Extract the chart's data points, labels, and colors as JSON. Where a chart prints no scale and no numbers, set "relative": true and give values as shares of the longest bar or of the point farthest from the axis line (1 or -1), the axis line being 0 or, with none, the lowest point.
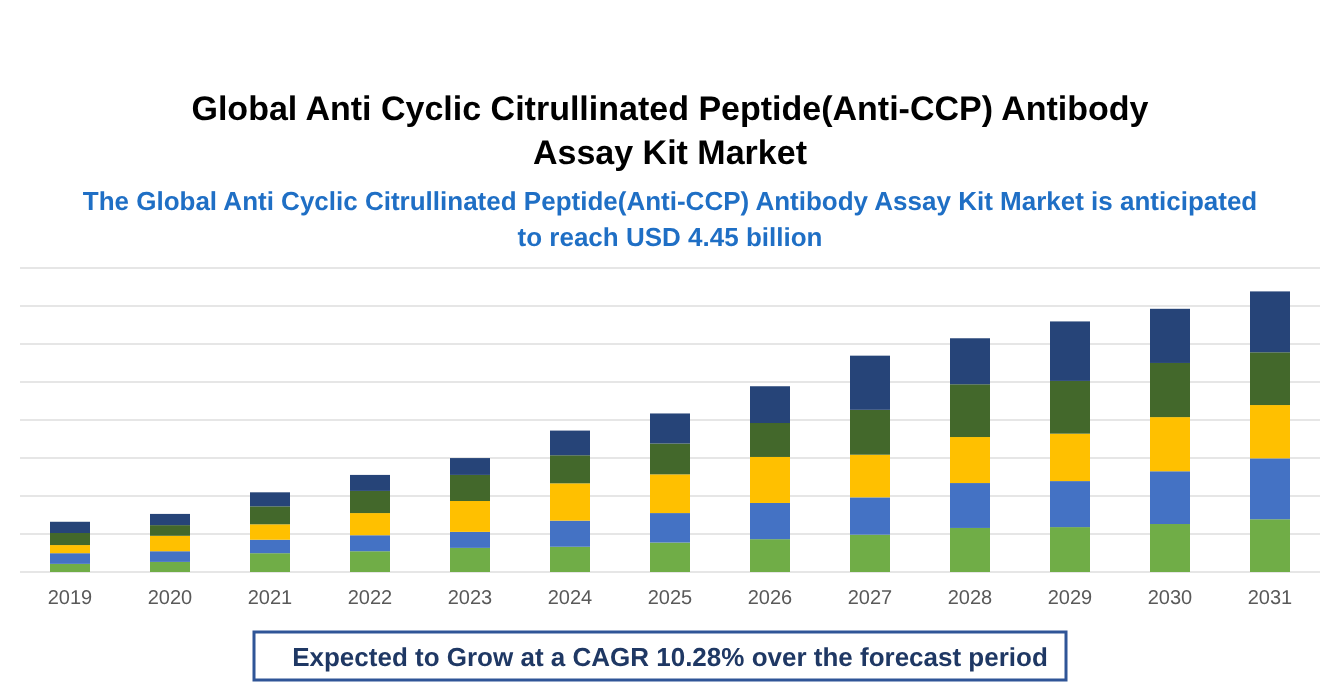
{
  "chart_data": {
    "type": "bar",
    "stacked": true,
    "relative": true,
    "grid": "y",
    "title": "Global Anti Cyclic Citrullinated Peptide(Anti-CCP) Antibody Assay Kit Market",
    "subtitle": "The Global Anti Cyclic Citrullinated Peptide(Anti-CCP) Antibody Assay Kit Market is anticipated to reach USD 4.45 billion",
    "annotations": [
      "Expected to Grow at a CAGR 10.28% over the forecast period"
    ],
    "categories": [
      "2019",
      "2020",
      "2021",
      "2022",
      "2023",
      "2024",
      "2025",
      "2026",
      "2027",
      "2028",
      "2029",
      "2030",
      "2031"
    ],
    "series": [
      {
        "color": "#70ad47",
        "values": [
          0.029,
          0.036,
          0.067,
          0.074,
          0.086,
          0.09,
          0.105,
          0.117,
          0.133,
          0.157,
          0.16,
          0.171,
          0.188
        ]
      },
      {
        "color": "#4472c4",
        "values": [
          0.038,
          0.038,
          0.048,
          0.057,
          0.057,
          0.093,
          0.105,
          0.129,
          0.133,
          0.16,
          0.164,
          0.188,
          0.217
        ]
      },
      {
        "color": "#ffc000",
        "values": [
          0.029,
          0.055,
          0.055,
          0.079,
          0.11,
          0.133,
          0.138,
          0.164,
          0.152,
          0.164,
          0.169,
          0.193,
          0.19
        ]
      },
      {
        "color": "#43682b",
        "values": [
          0.043,
          0.038,
          0.064,
          0.079,
          0.093,
          0.1,
          0.11,
          0.121,
          0.16,
          0.188,
          0.188,
          0.193,
          0.188
        ]
      },
      {
        "color": "#264478",
        "values": [
          0.04,
          0.04,
          0.05,
          0.057,
          0.06,
          0.088,
          0.107,
          0.131,
          0.193,
          0.164,
          0.212,
          0.193,
          0.217
        ]
      }
    ]
  }
}
